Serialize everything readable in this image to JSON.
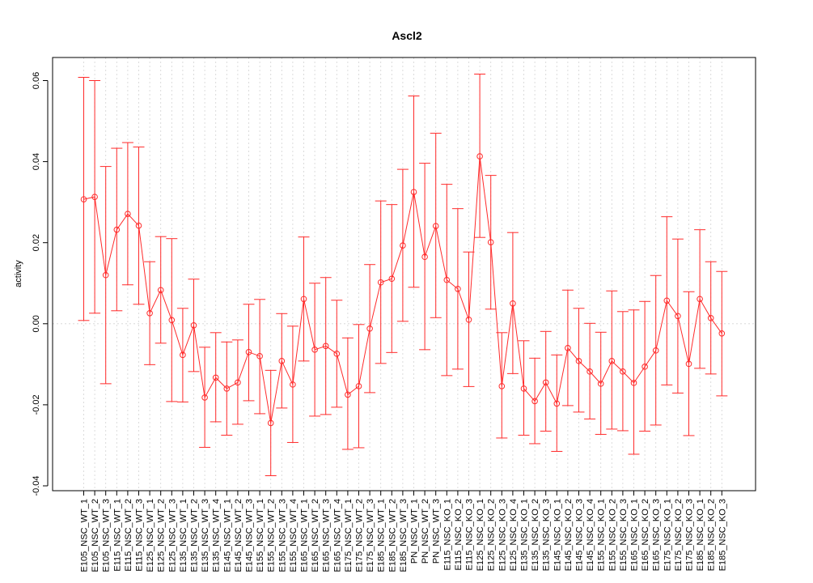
{
  "chart_data": {
    "type": "line",
    "title": "Ascl2",
    "xlabel": "",
    "ylabel": "activity",
    "ylim": [
      -0.04,
      0.06
    ],
    "yticks": [
      -0.04,
      -0.02,
      0.0,
      0.02,
      0.04,
      0.06
    ],
    "ytick_labels": [
      "-0.04",
      "-0.02",
      "0.00",
      "0.02",
      "0.04",
      "0.06"
    ],
    "grid": true,
    "color": "#ff2a2a",
    "categories": [
      "E105_NSC_WT_1",
      "E105_NSC_WT_2",
      "E105_NSC_WT_3",
      "E115_NSC_WT_1",
      "E115_NSC_WT_2",
      "E115_NSC_WT_3",
      "E125_NSC_WT_1",
      "E125_NSC_WT_2",
      "E125_NSC_WT_3",
      "E135_NSC_WT_1",
      "E135_NSC_WT_2",
      "E135_NSC_WT_3",
      "E135_NSC_WT_4",
      "E145_NSC_WT_1",
      "E145_NSC_WT_2",
      "E145_NSC_WT_3",
      "E155_NSC_WT_1",
      "E155_NSC_WT_2",
      "E155_NSC_WT_3",
      "E155_NSC_WT_4",
      "E165_NSC_WT_1",
      "E165_NSC_WT_2",
      "E165_NSC_WT_3",
      "E165_NSC_WT_4",
      "E175_NSC_WT_1",
      "E175_NSC_WT_2",
      "E175_NSC_WT_3",
      "E185_NSC_WT_1",
      "E185_NSC_WT_2",
      "E185_NSC_WT_3",
      "PN_NSC_WT_1",
      "PN_NSC_WT_2",
      "PN_NSC_WT_3",
      "E115_NSC_KO_1",
      "E115_NSC_KO_2",
      "E115_NSC_KO_3",
      "E125_NSC_KO_1",
      "E125_NSC_KO_2",
      "E125_NSC_KO_3",
      "E125_NSC_KO_4",
      "E135_NSC_KO_1",
      "E135_NSC_KO_2",
      "E135_NSC_KO_3",
      "E145_NSC_KO_1",
      "E145_NSC_KO_2",
      "E145_NSC_KO_3",
      "E145_NSC_KO_4",
      "E155_NSC_KO_1",
      "E155_NSC_KO_2",
      "E155_NSC_KO_3",
      "E165_NSC_KO_1",
      "E165_NSC_KO_2",
      "E165_NSC_KO_3",
      "E175_NSC_KO_1",
      "E175_NSC_KO_2",
      "E175_NSC_KO_3",
      "E185_NSC_KO_1",
      "E185_NSC_KO_2",
      "E185_NSC_KO_3"
    ],
    "series": [
      {
        "values": [
          0.0307,
          0.0313,
          0.012,
          0.0232,
          0.0271,
          0.0242,
          0.0026,
          0.0083,
          0.0009,
          -0.0077,
          -0.0004,
          -0.0182,
          -0.0133,
          -0.016,
          -0.0145,
          -0.007,
          -0.008,
          -0.0245,
          -0.0092,
          -0.015,
          0.0061,
          -0.0064,
          -0.0055,
          -0.0074,
          -0.0175,
          -0.0154,
          -0.0012,
          0.0102,
          0.0111,
          0.0193,
          0.0325,
          0.0165,
          0.0241,
          0.0108,
          0.0086,
          0.001,
          0.0413,
          0.0201,
          -0.0154,
          0.005,
          -0.016,
          -0.0191,
          -0.0145,
          -0.0197,
          -0.006,
          -0.0092,
          -0.0118,
          -0.0148,
          -0.0092,
          -0.0118,
          -0.0146,
          -0.0106,
          -0.0066,
          0.0057,
          0.0019,
          -0.0099,
          0.0061,
          0.0014,
          -0.0024
        ],
        "upper": [
          0.0608,
          0.06,
          0.0388,
          0.0433,
          0.0447,
          0.0436,
          0.0153,
          0.0215,
          0.021,
          0.0038,
          0.011,
          -0.0058,
          -0.0022,
          -0.0045,
          -0.004,
          0.0048,
          0.006,
          -0.0115,
          0.0025,
          -0.0006,
          0.0214,
          0.01,
          0.0114,
          0.0058,
          -0.0035,
          -0.0002,
          0.0146,
          0.0303,
          0.0294,
          0.0381,
          0.0562,
          0.0396,
          0.047,
          0.0344,
          0.0284,
          0.0177,
          0.0616,
          0.0366,
          -0.0022,
          0.0225,
          -0.0042,
          -0.0085,
          -0.0019,
          -0.0077,
          0.0083,
          0.0038,
          0.0001,
          -0.0021,
          0.0081,
          0.003,
          0.0034,
          0.0055,
          0.0119,
          0.0264,
          0.0209,
          0.0079,
          0.0232,
          0.0153,
          0.0129
        ],
        "lower": [
          0.0008,
          0.0026,
          -0.0148,
          0.0032,
          0.0096,
          0.0048,
          -0.0101,
          -0.0048,
          -0.0192,
          -0.0193,
          -0.0118,
          -0.0305,
          -0.0242,
          -0.0275,
          -0.0248,
          -0.019,
          -0.0222,
          -0.0375,
          -0.0208,
          -0.0293,
          -0.0092,
          -0.0228,
          -0.0224,
          -0.0206,
          -0.031,
          -0.0306,
          -0.017,
          -0.0098,
          -0.0071,
          0.0006,
          0.009,
          -0.0064,
          0.0015,
          -0.0128,
          -0.0112,
          -0.0155,
          0.0213,
          0.0036,
          -0.0282,
          -0.0123,
          -0.0275,
          -0.0296,
          -0.0265,
          -0.0315,
          -0.0202,
          -0.0218,
          -0.0235,
          -0.0273,
          -0.026,
          -0.0264,
          -0.0322,
          -0.0265,
          -0.025,
          -0.0151,
          -0.0171,
          -0.0276,
          -0.011,
          -0.0124,
          -0.0178
        ]
      }
    ]
  }
}
